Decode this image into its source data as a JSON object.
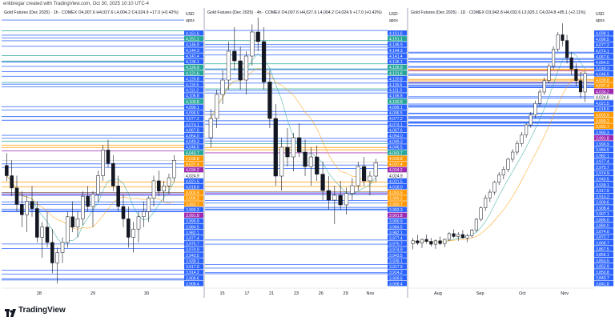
{
  "credit": "erikbregar created with TradingView.com, Oct 30, 2025 10:10 UTC-4",
  "logo_text": "TradingView",
  "currency": "USD",
  "currency_sub": "аpoз",
  "colors": {
    "up_candle": "#ffffff",
    "candle_outline": "#131722",
    "blue_line": "#2962ff",
    "purple_line": "#9c27b0",
    "orange_line": "#ff9800",
    "teal_line": "#26a69a",
    "label_blue": "#2962ff",
    "label_purple": "#9c27b0",
    "label_orange": "#ff9800",
    "label_teal": "#26a69a",
    "label_gray": "#ffffff"
  },
  "chart_data": [
    {
      "type": "candlestick",
      "title": "Gold Futures (Dec 2025) · 1h · COMEX  O4,007.6  H4,027.6  L4,004.2  C4,024.9  +17.0 (+0.42%)",
      "x_ticks": [
        "28",
        "29",
        "30"
      ],
      "price_labels": [
        {
          "v": "4,161.6",
          "c": "blue"
        },
        {
          "v": "4,151.1",
          "c": "teal"
        },
        {
          "v": "4,146.9",
          "c": "blue"
        },
        {
          "v": "4,144.3",
          "c": "blue"
        },
        {
          "v": "4,141.4",
          "c": "blue"
        },
        {
          "v": "4,136.1",
          "c": "blue"
        },
        {
          "v": "4,126.9",
          "c": "teal"
        },
        {
          "v": "4,121.6",
          "c": "teal"
        },
        {
          "v": "4,120.8",
          "c": "blue"
        },
        {
          "v": "4,116.5",
          "c": "blue"
        },
        {
          "v": "4,111.3",
          "c": "blue"
        },
        {
          "v": "4,106.8",
          "c": "blue"
        },
        {
          "v": "4,100.8",
          "c": "teal"
        },
        {
          "v": "4,099.1",
          "c": "blue"
        },
        {
          "v": "4,096.5",
          "c": "blue"
        },
        {
          "v": "4,077.2",
          "c": "blue"
        },
        {
          "v": "4,074.1",
          "c": "blue"
        },
        {
          "v": "4,067.6",
          "c": "blue"
        },
        {
          "v": "4,064.0",
          "c": "blue"
        },
        {
          "v": "4,049.3",
          "c": "blue"
        },
        {
          "v": "4,046.5",
          "c": "blue"
        },
        {
          "v": "4,043.7",
          "c": "teal"
        },
        {
          "v": "4,039.8",
          "c": "orange"
        },
        {
          "v": "4,037.4",
          "c": "orange"
        },
        {
          "v": "4,034.2",
          "c": "purple"
        },
        {
          "v": "4,024.9",
          "c": "gray"
        },
        {
          "v": "4,021.5",
          "c": "blue"
        },
        {
          "v": "4,018.0",
          "c": "blue"
        },
        {
          "v": "4,003.9",
          "c": "orange"
        },
        {
          "v": "3,999.2",
          "c": "orange"
        },
        {
          "v": "3,993.7",
          "c": "orange"
        },
        {
          "v": "3,993.3",
          "c": "blue"
        },
        {
          "v": "3,991.8",
          "c": "purple"
        },
        {
          "v": "3,990.9",
          "c": "blue"
        },
        {
          "v": "3,984.5",
          "c": "blue"
        },
        {
          "v": "3,982.1",
          "c": "blue"
        },
        {
          "v": "3,977.4",
          "c": "blue"
        },
        {
          "v": "3,975.7",
          "c": "blue"
        },
        {
          "v": "3,974.9",
          "c": "blue"
        },
        {
          "v": "3,943.5",
          "c": "blue"
        },
        {
          "v": "3,939.1",
          "c": "blue"
        },
        {
          "v": "3,917.9",
          "c": "blue"
        },
        {
          "v": "3,914.2",
          "c": "blue"
        },
        {
          "v": "3,909.6",
          "c": "blue"
        },
        {
          "v": "3,908.4",
          "c": "blue"
        }
      ],
      "candles": [
        [
          4020,
          4032,
          4005,
          4010
        ],
        [
          4010,
          4025,
          3990,
          3998
        ],
        [
          3998,
          4010,
          3975,
          3982
        ],
        [
          3982,
          3995,
          3960,
          3972
        ],
        [
          3972,
          3990,
          3955,
          3985
        ],
        [
          3985,
          4000,
          3970,
          3978
        ],
        [
          3978,
          3985,
          3945,
          3950
        ],
        [
          3950,
          3965,
          3930,
          3960
        ],
        [
          3960,
          3975,
          3940,
          3945
        ],
        [
          3945,
          3958,
          3915,
          3925
        ],
        [
          3925,
          3940,
          3905,
          3935
        ],
        [
          3935,
          3950,
          3925,
          3945
        ],
        [
          3945,
          3975,
          3940,
          3970
        ],
        [
          3970,
          3985,
          3955,
          3960
        ],
        [
          3960,
          3975,
          3950,
          3968
        ],
        [
          3968,
          3995,
          3962,
          3990
        ],
        [
          3990,
          4000,
          3975,
          3980
        ],
        [
          3980,
          3995,
          3960,
          3992
        ],
        [
          3992,
          4015,
          3985,
          4010
        ],
        [
          4010,
          4040,
          4005,
          4035
        ],
        [
          4035,
          4045,
          4018,
          4022
        ],
        [
          4022,
          4030,
          3995,
          4000
        ],
        [
          4000,
          4010,
          3975,
          3980
        ],
        [
          3980,
          3992,
          3960,
          3968
        ],
        [
          3968,
          3980,
          3940,
          3950
        ],
        [
          3950,
          3965,
          3935,
          3958
        ],
        [
          3958,
          3975,
          3945,
          3970
        ],
        [
          3970,
          3985,
          3960,
          3975
        ],
        [
          3975,
          3990,
          3965,
          3988
        ],
        [
          3988,
          4010,
          3980,
          4005
        ],
        [
          4005,
          4015,
          3990,
          3995
        ],
        [
          3995,
          4005,
          3985,
          4000
        ],
        [
          4000,
          4012,
          3992,
          4008
        ],
        [
          4008,
          4030,
          4004,
          4025
        ]
      ],
      "ylim": [
        3902,
        4164
      ]
    },
    {
      "type": "candlestick",
      "title": "Gold Futures (Dec 2025) · 4h · COMEX  O4,007.6  H4,027.6  L4,004.2  C4,024.9  +17.0 (+0.42%)",
      "x_ticks": [
        "15",
        "17",
        "21",
        "23",
        "26",
        "29",
        "Nov"
      ],
      "price_labels": [
        {
          "v": "4,161.6",
          "c": "blue"
        },
        {
          "v": "4,151.1",
          "c": "teal"
        },
        {
          "v": "4,146.9",
          "c": "blue"
        },
        {
          "v": "4,144.3",
          "c": "blue"
        },
        {
          "v": "4,141.4",
          "c": "blue"
        },
        {
          "v": "4,136.1",
          "c": "blue"
        },
        {
          "v": "4,126.9",
          "c": "teal"
        },
        {
          "v": "4,121.6",
          "c": "teal"
        },
        {
          "v": "4,120.8",
          "c": "blue"
        },
        {
          "v": "4,116.5",
          "c": "blue"
        },
        {
          "v": "4,111.3",
          "c": "blue"
        },
        {
          "v": "4,106.8",
          "c": "blue"
        },
        {
          "v": "4,100.8",
          "c": "teal"
        },
        {
          "v": "4,099.1",
          "c": "blue"
        },
        {
          "v": "4,096.5",
          "c": "blue"
        },
        {
          "v": "4,077.2",
          "c": "blue"
        },
        {
          "v": "4,074.1",
          "c": "blue"
        },
        {
          "v": "4,067.6",
          "c": "blue"
        },
        {
          "v": "4,064.0",
          "c": "blue"
        },
        {
          "v": "4,049.3",
          "c": "blue"
        },
        {
          "v": "4,046.5",
          "c": "blue"
        },
        {
          "v": "4,043.7",
          "c": "teal"
        },
        {
          "v": "4,039.8",
          "c": "orange"
        },
        {
          "v": "4,037.4",
          "c": "orange"
        },
        {
          "v": "4,034.2",
          "c": "purple"
        },
        {
          "v": "4,024.9",
          "c": "gray"
        },
        {
          "v": "4,021.5",
          "c": "blue"
        },
        {
          "v": "4,018.0",
          "c": "blue"
        },
        {
          "v": "4,003.9",
          "c": "orange"
        },
        {
          "v": "3,999.2",
          "c": "orange"
        },
        {
          "v": "3,993.7",
          "c": "orange"
        },
        {
          "v": "3,993.3",
          "c": "blue"
        },
        {
          "v": "3,991.8",
          "c": "purple"
        },
        {
          "v": "3,990.9",
          "c": "blue"
        },
        {
          "v": "3,984.5",
          "c": "blue"
        },
        {
          "v": "3,982.1",
          "c": "blue"
        },
        {
          "v": "3,977.4",
          "c": "blue"
        },
        {
          "v": "3,975.7",
          "c": "blue"
        },
        {
          "v": "3,974.9",
          "c": "blue"
        },
        {
          "v": "3,943.5",
          "c": "blue"
        },
        {
          "v": "3,939.1",
          "c": "blue"
        },
        {
          "v": "3,917.9",
          "c": "blue"
        },
        {
          "v": "3,914.2",
          "c": "blue"
        },
        {
          "v": "3,909.6",
          "c": "blue"
        },
        {
          "v": "3,908.4",
          "c": "blue"
        }
      ],
      "candles": [
        [
          4050,
          4080,
          4040,
          4070
        ],
        [
          4070,
          4100,
          4060,
          4095
        ],
        [
          4095,
          4120,
          4085,
          4110
        ],
        [
          4110,
          4150,
          4100,
          4140
        ],
        [
          4140,
          4165,
          4120,
          4130
        ],
        [
          4130,
          4145,
          4100,
          4110
        ],
        [
          4110,
          4140,
          4095,
          4135
        ],
        [
          4135,
          4168,
          4125,
          4160
        ],
        [
          4160,
          4175,
          4140,
          4150
        ],
        [
          4150,
          4165,
          4100,
          4108
        ],
        [
          4108,
          4120,
          4060,
          4070
        ],
        [
          4070,
          4085,
          4000,
          4010
        ],
        [
          4010,
          4050,
          3995,
          4040
        ],
        [
          4040,
          4060,
          4020,
          4030
        ],
        [
          4030,
          4055,
          4015,
          4050
        ],
        [
          4050,
          4065,
          4030,
          4035
        ],
        [
          4035,
          4048,
          4010,
          4020
        ],
        [
          4020,
          4040,
          4000,
          4030
        ],
        [
          4030,
          4042,
          4005,
          4012
        ],
        [
          4012,
          4025,
          3985,
          3995
        ],
        [
          3995,
          4010,
          3975,
          3985
        ],
        [
          3985,
          4000,
          3960,
          3990
        ],
        [
          3990,
          4005,
          3975,
          3980
        ],
        [
          3980,
          3998,
          3970,
          3992
        ],
        [
          3992,
          4008,
          3985,
          4000
        ],
        [
          4000,
          4025,
          3995,
          4020
        ],
        [
          4020,
          4030,
          4000,
          4005
        ],
        [
          4005,
          4015,
          3990,
          4010
        ],
        [
          4010,
          4028,
          4004,
          4024
        ]
      ],
      "ylim": [
        3895,
        4175
      ]
    },
    {
      "type": "candlestick",
      "title": "Gold Futures (Dec 2025) · 1D · COMEX  O3,942.8  H4,032.6  L3,925.1  C4,024.8  +85.1 (+2.11%)",
      "x_ticks": [
        "Aug",
        "Sep",
        "Oct",
        "Nov"
      ],
      "price_labels": [
        {
          "v": "4,099.1",
          "c": "blue"
        },
        {
          "v": "4,096.5",
          "c": "blue"
        },
        {
          "v": "4,077.2",
          "c": "blue"
        },
        {
          "v": "4,074.1",
          "c": "blue"
        },
        {
          "v": "4,067.6",
          "c": "blue"
        },
        {
          "v": "4,064.0",
          "c": "blue"
        },
        {
          "v": "4,049.3",
          "c": "blue"
        },
        {
          "v": "4,046.5",
          "c": "blue"
        },
        {
          "v": "4,039.8",
          "c": "orange"
        },
        {
          "v": "4,037.4",
          "c": "orange"
        },
        {
          "v": "4,034.2",
          "c": "purple"
        },
        {
          "v": "4,024.8",
          "c": "gray"
        },
        {
          "v": "4,021.5",
          "c": "blue"
        },
        {
          "v": "4,018.0",
          "c": "blue"
        },
        {
          "v": "4,003.9",
          "c": "orange"
        },
        {
          "v": "3,999.2",
          "c": "orange"
        },
        {
          "v": "3,993.7",
          "c": "orange"
        },
        {
          "v": "3,993.3",
          "c": "blue"
        },
        {
          "v": "3,991.8",
          "c": "purple"
        },
        {
          "v": "3,990.9",
          "c": "blue"
        },
        {
          "v": "3,984.5",
          "c": "blue"
        },
        {
          "v": "3,982.1",
          "c": "blue"
        },
        {
          "v": "3,977.4",
          "c": "blue"
        },
        {
          "v": "3,975.7",
          "c": "blue"
        },
        {
          "v": "3,974.9",
          "c": "blue"
        },
        {
          "v": "3,943.5",
          "c": "blue"
        },
        {
          "v": "3,939.1",
          "c": "blue"
        },
        {
          "v": "3,917.9",
          "c": "blue"
        },
        {
          "v": "3,914.2",
          "c": "blue"
        },
        {
          "v": "3,909.6",
          "c": "blue"
        },
        {
          "v": "3,908.4",
          "c": "blue"
        },
        {
          "v": "3,907.1",
          "c": "blue"
        },
        {
          "v": "3,886.0",
          "c": "blue"
        },
        {
          "v": "3,884.0",
          "c": "blue"
        },
        {
          "v": "3,874.0",
          "c": "blue"
        },
        {
          "v": "3,872.7",
          "c": "blue"
        },
        {
          "v": "3,868.7",
          "c": "blue"
        },
        {
          "v": "3,867.5",
          "c": "blue"
        },
        {
          "v": "3,856.1",
          "c": "blue"
        },
        {
          "v": "3,853.5",
          "c": "blue"
        },
        {
          "v": "3,852.9",
          "c": "blue"
        },
        {
          "v": "3,850.8",
          "c": "blue"
        },
        {
          "v": "3,843.7",
          "c": "blue"
        },
        {
          "v": "3,841.8",
          "c": "blue"
        }
      ],
      "candles": [
        [
          3430,
          3450,
          3410,
          3440
        ],
        [
          3440,
          3460,
          3425,
          3432
        ],
        [
          3432,
          3448,
          3415,
          3445
        ],
        [
          3445,
          3462,
          3430,
          3438
        ],
        [
          3438,
          3450,
          3420,
          3428
        ],
        [
          3428,
          3445,
          3412,
          3440
        ],
        [
          3440,
          3455,
          3425,
          3430
        ],
        [
          3430,
          3448,
          3418,
          3445
        ],
        [
          3445,
          3470,
          3438,
          3465
        ],
        [
          3465,
          3480,
          3450,
          3455
        ],
        [
          3455,
          3470,
          3440,
          3462
        ],
        [
          3462,
          3478,
          3448,
          3450
        ],
        [
          3450,
          3465,
          3435,
          3458
        ],
        [
          3458,
          3482,
          3450,
          3478
        ],
        [
          3478,
          3520,
          3470,
          3515
        ],
        [
          3515,
          3560,
          3508,
          3555
        ],
        [
          3555,
          3600,
          3545,
          3590
        ],
        [
          3590,
          3620,
          3575,
          3610
        ],
        [
          3610,
          3650,
          3600,
          3645
        ],
        [
          3645,
          3680,
          3635,
          3670
        ],
        [
          3670,
          3700,
          3655,
          3690
        ],
        [
          3690,
          3730,
          3680,
          3725
        ],
        [
          3725,
          3760,
          3715,
          3750
        ],
        [
          3750,
          3790,
          3740,
          3780
        ],
        [
          3780,
          3820,
          3770,
          3810
        ],
        [
          3810,
          3850,
          3800,
          3845
        ],
        [
          3845,
          3890,
          3835,
          3880
        ],
        [
          3880,
          3930,
          3870,
          3920
        ],
        [
          3920,
          3970,
          3910,
          3960
        ],
        [
          3960,
          4010,
          3950,
          4000
        ],
        [
          4000,
          4060,
          3990,
          4050
        ],
        [
          4050,
          4120,
          4040,
          4110
        ],
        [
          4110,
          4170,
          4100,
          4160
        ],
        [
          4160,
          4200,
          4120,
          4140
        ],
        [
          4140,
          4160,
          4060,
          4080
        ],
        [
          4080,
          4100,
          4020,
          4040
        ],
        [
          4040,
          4060,
          3980,
          4000
        ],
        [
          4000,
          4030,
          3940,
          3960
        ],
        [
          3960,
          4033,
          3925,
          4025
        ]
      ],
      "ylim": [
        3280,
        4220
      ]
    }
  ]
}
